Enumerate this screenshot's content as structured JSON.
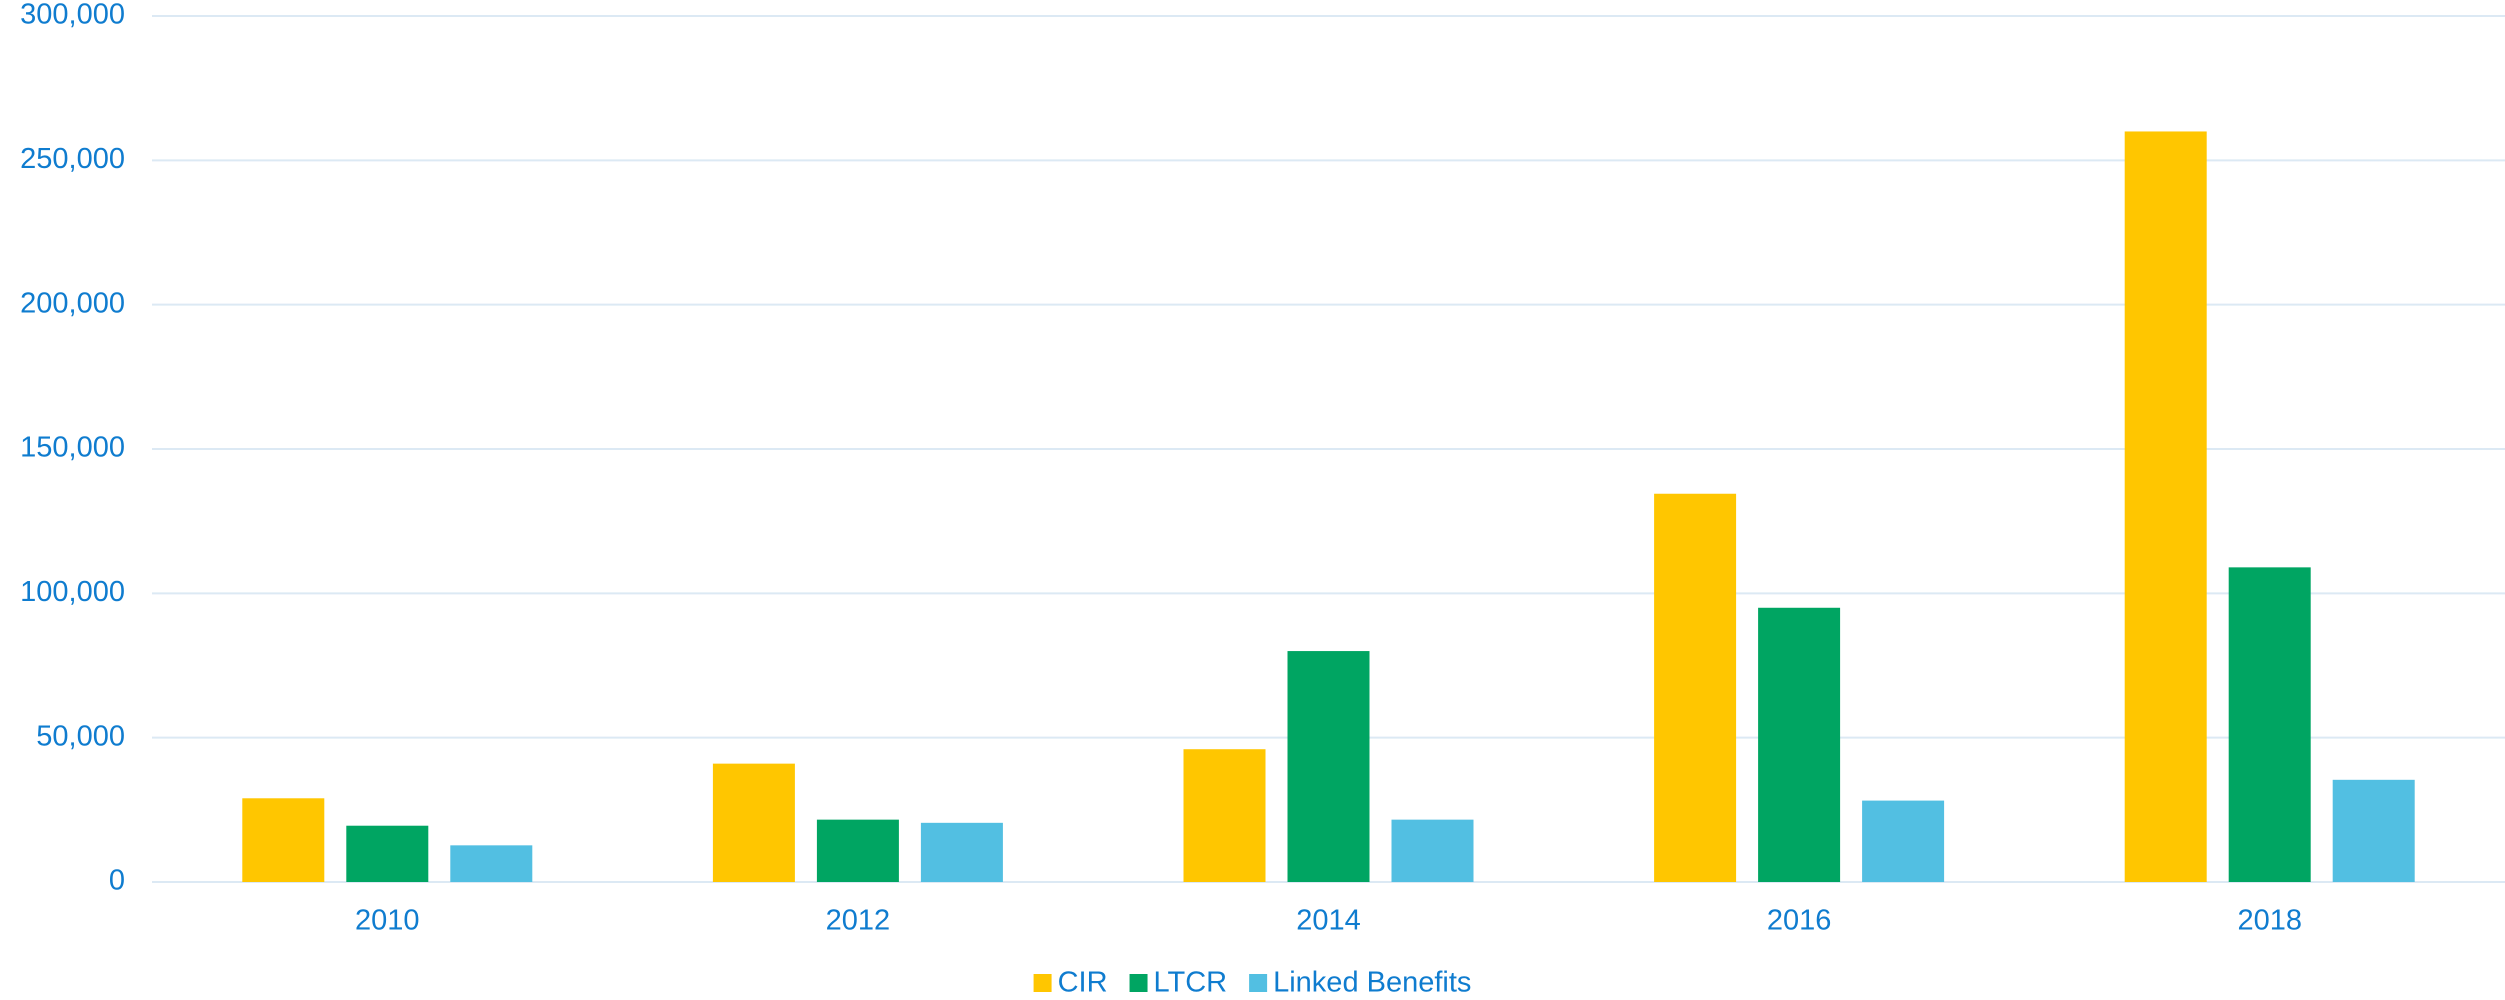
{
  "chart_data": {
    "type": "bar",
    "categories": [
      "2010",
      "2012",
      "2014",
      "2016",
      "2018"
    ],
    "series": [
      {
        "name": "CIR",
        "color": "#ffc600",
        "values": [
          29000,
          41000,
          46000,
          134500,
          260000
        ]
      },
      {
        "name": "LTCR",
        "color": "#00a562",
        "values": [
          19500,
          21600,
          80000,
          95000,
          109000
        ]
      },
      {
        "name": "Linked Benefits",
        "color": "#52bfe2",
        "values": [
          12700,
          20500,
          21600,
          28200,
          35400
        ]
      }
    ],
    "ylim": [
      0,
      300000
    ],
    "yticks": [
      0,
      {
        "value": 50000,
        "label": "50,000"
      },
      {
        "value": 100000,
        "label": "100,000"
      },
      {
        "value": 150000,
        "label": "150,000"
      },
      {
        "value": 200000,
        "label": "200,000"
      },
      {
        "value": 250000,
        "label": "250,000"
      },
      {
        "value": 300000,
        "label": "300,000"
      }
    ],
    "grid": true,
    "legend": "bottom"
  }
}
